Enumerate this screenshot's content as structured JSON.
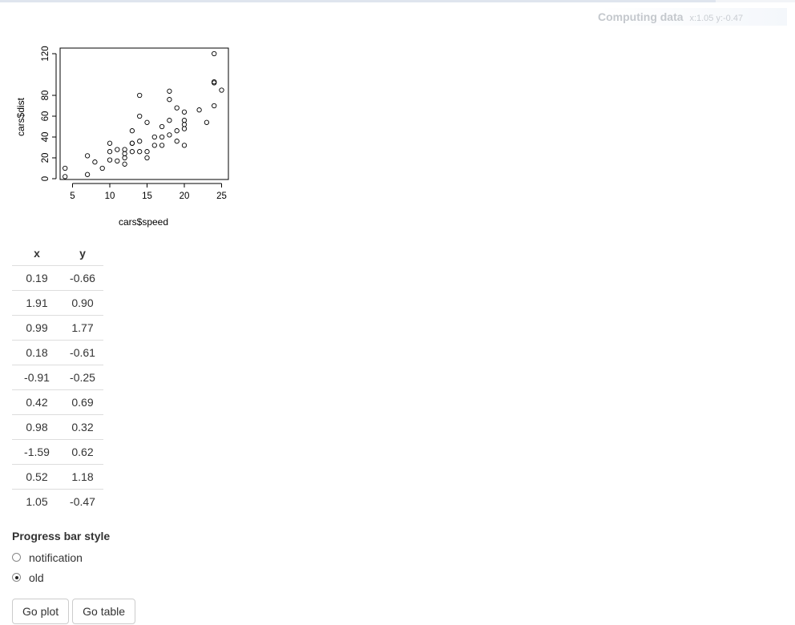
{
  "progress": {
    "message": "Computing data",
    "detail": "x:1.05 y:-0.47",
    "fraction": 0.9
  },
  "chart_data": {
    "type": "scatter",
    "xlabel": "cars$speed",
    "ylabel": "cars$dist",
    "xlim": [
      4,
      25
    ],
    "ylim": [
      2,
      120
    ],
    "xticks": [
      5,
      10,
      15,
      20,
      25
    ],
    "yticks": [
      0,
      20,
      40,
      60,
      80,
      120
    ],
    "grid": false,
    "points": [
      [
        4,
        2
      ],
      [
        4,
        10
      ],
      [
        7,
        4
      ],
      [
        7,
        22
      ],
      [
        8,
        16
      ],
      [
        9,
        10
      ],
      [
        10,
        18
      ],
      [
        10,
        26
      ],
      [
        10,
        34
      ],
      [
        11,
        17
      ],
      [
        11,
        28
      ],
      [
        12,
        14
      ],
      [
        12,
        20
      ],
      [
        12,
        24
      ],
      [
        12,
        28
      ],
      [
        13,
        26
      ],
      [
        13,
        34
      ],
      [
        13,
        34
      ],
      [
        13,
        46
      ],
      [
        14,
        26
      ],
      [
        14,
        36
      ],
      [
        14,
        60
      ],
      [
        14,
        80
      ],
      [
        15,
        20
      ],
      [
        15,
        26
      ],
      [
        15,
        54
      ],
      [
        16,
        32
      ],
      [
        16,
        40
      ],
      [
        17,
        32
      ],
      [
        17,
        40
      ],
      [
        17,
        50
      ],
      [
        18,
        42
      ],
      [
        18,
        56
      ],
      [
        18,
        76
      ],
      [
        18,
        84
      ],
      [
        19,
        36
      ],
      [
        19,
        46
      ],
      [
        19,
        68
      ],
      [
        20,
        32
      ],
      [
        20,
        48
      ],
      [
        20,
        52
      ],
      [
        20,
        56
      ],
      [
        20,
        64
      ],
      [
        22,
        66
      ],
      [
        23,
        54
      ],
      [
        24,
        70
      ],
      [
        24,
        92
      ],
      [
        24,
        93
      ],
      [
        24,
        120
      ],
      [
        25,
        85
      ]
    ]
  },
  "table": {
    "headers": [
      "x",
      "y"
    ],
    "rows": [
      [
        "0.19",
        "-0.66"
      ],
      [
        "1.91",
        "0.90"
      ],
      [
        "0.99",
        "1.77"
      ],
      [
        "0.18",
        "-0.61"
      ],
      [
        "-0.91",
        "-0.25"
      ],
      [
        "0.42",
        "0.69"
      ],
      [
        "0.98",
        "0.32"
      ],
      [
        "-1.59",
        "0.62"
      ],
      [
        "0.52",
        "1.18"
      ],
      [
        "1.05",
        "-0.47"
      ]
    ]
  },
  "style_control": {
    "label": "Progress bar style",
    "options": [
      {
        "label": "notification",
        "checked": false
      },
      {
        "label": "old",
        "checked": true
      }
    ]
  },
  "buttons": {
    "plot": "Go plot",
    "table": "Go table"
  }
}
